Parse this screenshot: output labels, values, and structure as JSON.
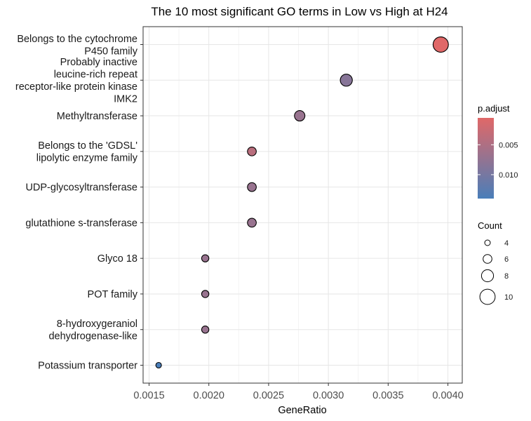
{
  "chart_data": {
    "type": "scatter",
    "title": "The 10 most significant GO terms in Low vs High at H24",
    "xlabel": "GeneRatio",
    "ylabel": "",
    "xlim": [
      0.00145,
      0.00412
    ],
    "xticks": [
      "0.0015",
      "0.0020",
      "0.0025",
      "0.0030",
      "0.0035",
      "0.0040"
    ],
    "xtick_values": [
      0.0015,
      0.002,
      0.0025,
      0.003,
      0.0035,
      0.004
    ],
    "grid": true,
    "legend_position": "right",
    "color_low": "#4a7eb9",
    "color_high": "#e06868",
    "point_border": "#000000",
    "categories": [
      [
        "Belongs to the cytochrome",
        "P450 family"
      ],
      [
        "Probably inactive",
        "leucine-rich repeat",
        "receptor-like protein kinase",
        "IMK2"
      ],
      [
        "Methyltransferase"
      ],
      [
        "Belongs to the 'GDSL'",
        "lipolytic enzyme family"
      ],
      [
        "UDP-glycosyltransferase"
      ],
      [
        "glutathione s-transferase"
      ],
      [
        "Glyco 18"
      ],
      [
        "POT family"
      ],
      [
        "8-hydroxygeraniol",
        "dehydrogenase-like"
      ],
      [
        "Potassium transporter"
      ]
    ],
    "points": [
      {
        "x": 0.00394,
        "count": 10,
        "p_adjust": 0.0005
      },
      {
        "x": 0.00315,
        "count": 8,
        "p_adjust": 0.0085
      },
      {
        "x": 0.00276,
        "count": 7,
        "p_adjust": 0.007
      },
      {
        "x": 0.00236,
        "count": 6,
        "p_adjust": 0.004
      },
      {
        "x": 0.00236,
        "count": 6,
        "p_adjust": 0.007
      },
      {
        "x": 0.00236,
        "count": 6,
        "p_adjust": 0.007
      },
      {
        "x": 0.00197,
        "count": 5,
        "p_adjust": 0.007
      },
      {
        "x": 0.00197,
        "count": 5,
        "p_adjust": 0.007
      },
      {
        "x": 0.00197,
        "count": 5,
        "p_adjust": 0.007
      },
      {
        "x": 0.00158,
        "count": 4,
        "p_adjust": 0.014
      }
    ],
    "p_adjust_legend": {
      "title": "p.adjust",
      "range": [
        0.0005,
        0.014
      ],
      "tick_labels": [
        "0.005",
        "0.010"
      ],
      "tick_values": [
        0.005,
        0.01
      ]
    },
    "count_legend": {
      "title": "Count",
      "labels": [
        "4",
        "6",
        "8",
        "10"
      ],
      "values": [
        4,
        6,
        8,
        10
      ]
    }
  }
}
